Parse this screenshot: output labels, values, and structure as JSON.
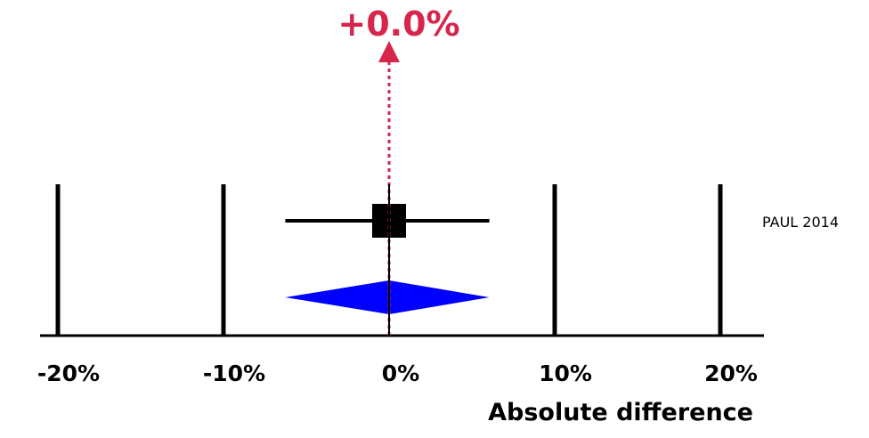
{
  "chart_data": {
    "type": "forest",
    "title": "",
    "xlabel": "Absolute difference",
    "xlim": [
      -20,
      20
    ],
    "ticks": [
      {
        "value": -20,
        "label": "-20%"
      },
      {
        "value": -10,
        "label": "-10%"
      },
      {
        "value": 0,
        "label": "0%"
      },
      {
        "value": 10,
        "label": "10%"
      },
      {
        "value": 20,
        "label": "20%"
      }
    ],
    "studies": [
      {
        "name": "PAUL 2014",
        "estimate": 0.0,
        "ci_low": -6.0,
        "ci_high": 6.0
      }
    ],
    "pooled": {
      "estimate": 0.0,
      "ci_low": -6.0,
      "ci_high": 6.0,
      "label": "+0.0%"
    },
    "colors": {
      "pooled_label": "#d6264c",
      "reference_line": "#d6264c",
      "diamond": "#0000ff",
      "study": "#000000"
    }
  }
}
